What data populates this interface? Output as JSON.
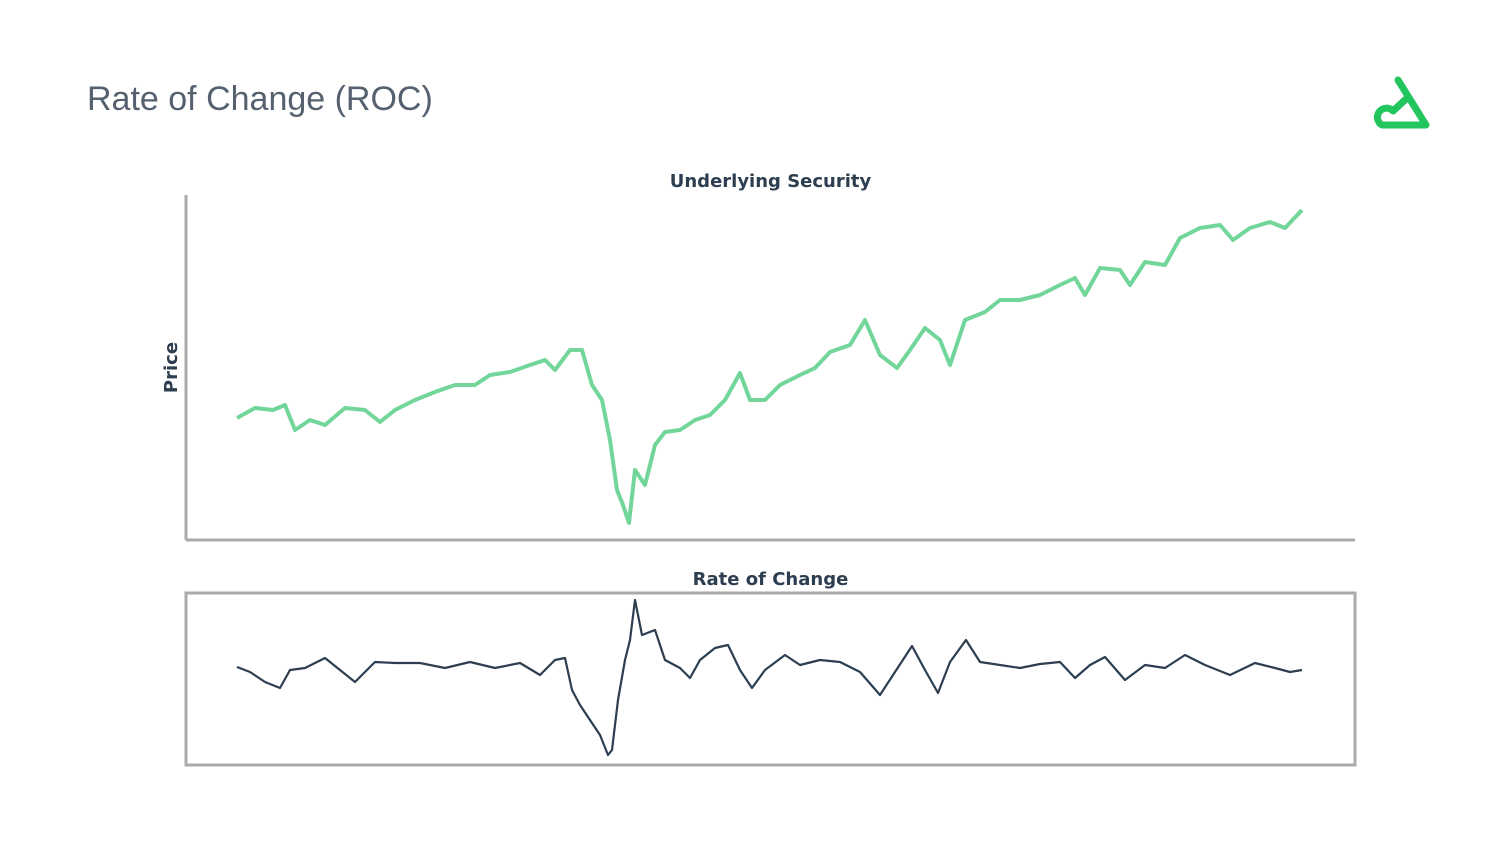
{
  "header": {
    "title": "Rate of Change (ROC)"
  },
  "chart_data": [
    {
      "type": "line",
      "title": "Underlying Security",
      "y_label": "Price",
      "color": "#72d69b",
      "xlim": [
        -51,
        1118
      ],
      "ylim": [
        0,
        345
      ],
      "x": [
        0,
        18,
        36,
        48,
        58,
        73,
        88,
        108,
        128,
        143,
        158,
        178,
        198,
        218,
        238,
        253,
        273,
        293,
        308,
        318,
        333,
        345,
        355,
        365,
        373,
        380,
        386,
        392,
        398,
        408,
        418,
        428,
        443,
        458,
        473,
        488,
        503,
        513,
        528,
        543,
        563,
        578,
        593,
        613,
        628,
        643,
        660,
        673,
        688,
        703,
        713,
        728,
        748,
        763,
        783,
        803,
        823,
        838,
        848,
        863,
        883,
        893,
        908,
        928,
        943,
        963,
        983,
        996,
        1013,
        1033,
        1048,
        1065
      ],
      "values": [
        122,
        132,
        130,
        135,
        110,
        120,
        115,
        132,
        130,
        118,
        130,
        140,
        148,
        155,
        155,
        165,
        168,
        175,
        180,
        170,
        190,
        190,
        155,
        140,
        100,
        50,
        35,
        17,
        70,
        55,
        95,
        108,
        110,
        120,
        125,
        140,
        167,
        140,
        140,
        155,
        165,
        172,
        188,
        195,
        220,
        185,
        172,
        190,
        212,
        200,
        175,
        220,
        228,
        240,
        240,
        245,
        255,
        262,
        245,
        272,
        270,
        255,
        278,
        275,
        302,
        312,
        315,
        300,
        312,
        318,
        312,
        330
      ]
    },
    {
      "type": "line",
      "title": "Rate of Change",
      "color": "#2c3e50",
      "xlim": [
        -51,
        1118
      ],
      "ylim": [
        -97,
        75
      ],
      "x": [
        0,
        13,
        28,
        43,
        53,
        68,
        88,
        103,
        118,
        138,
        158,
        183,
        208,
        233,
        258,
        283,
        303,
        318,
        328,
        335,
        343,
        353,
        363,
        371,
        375,
        381,
        388,
        393,
        398,
        405,
        418,
        428,
        443,
        453,
        463,
        478,
        491,
        503,
        515,
        528,
        548,
        563,
        583,
        603,
        623,
        643,
        658,
        675,
        688,
        701,
        713,
        729,
        743,
        763,
        783,
        803,
        823,
        838,
        853,
        868,
        888,
        908,
        928,
        948,
        968,
        993,
        1018,
        1038,
        1053,
        1065
      ],
      "values": [
        1,
        -4,
        -14,
        -20,
        -2,
        0,
        10,
        -2,
        -14,
        6,
        5,
        5,
        0,
        6,
        0,
        5,
        -7,
        8,
        10,
        -22,
        -37,
        -52,
        -67,
        -87,
        -82,
        -32,
        8,
        28,
        68,
        33,
        38,
        8,
        0,
        -10,
        8,
        20,
        23,
        -2,
        -20,
        -2,
        13,
        3,
        8,
        6,
        -4,
        -27,
        -4,
        22,
        -2,
        -25,
        6,
        28,
        6,
        3,
        0,
        4,
        6,
        -10,
        3,
        11,
        -12,
        3,
        0,
        13,
        3,
        -7,
        5,
        0,
        -4,
        -2
      ]
    }
  ]
}
